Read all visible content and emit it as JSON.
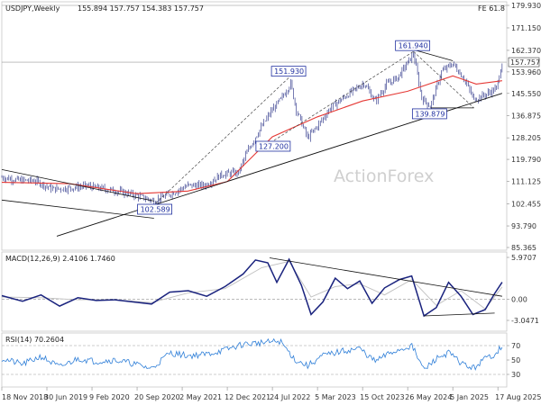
{
  "chart_data": {
    "type": "candlestick",
    "price_panel": {
      "title": "USDJPY,Weekly",
      "ohlc_readout": "155.894 157.757 154.383 157.757",
      "fib_label": "FE 61.8",
      "last_price": "157.757",
      "y_tick_labels": [
        "179.930",
        "171.150",
        "162.370",
        "153.960",
        "145.550",
        "136.875",
        "128.205",
        "119.790",
        "111.125",
        "102.455",
        "93.790",
        "85.365"
      ],
      "ylim": [
        85.365,
        179.93
      ],
      "swing_labels": [
        {
          "text": "102.589",
          "date": "2020-12-21",
          "value": 102.589
        },
        {
          "text": "127.200",
          "date": "2022-08-01",
          "value": 127.2
        },
        {
          "text": "151.930",
          "date": "2022-10-17",
          "value": 151.93
        },
        {
          "text": "161.940",
          "date": "2024-06-24",
          "value": 161.94
        },
        {
          "text": "139.879",
          "date": "2024-09-16",
          "value": 139.879
        }
      ],
      "close_series": {
        "dates": [
          "2018-11-18",
          "2019-02-10",
          "2019-05-05",
          "2019-07-28",
          "2019-10-20",
          "2020-01-12",
          "2020-04-05",
          "2020-06-28",
          "2020-09-20",
          "2020-12-13",
          "2021-03-07",
          "2021-05-30",
          "2021-08-22",
          "2021-11-14",
          "2022-02-06",
          "2022-03-13",
          "2022-05-01",
          "2022-07-17",
          "2022-09-11",
          "2022-10-23",
          "2022-11-20",
          "2023-01-15",
          "2023-03-12",
          "2023-05-07",
          "2023-07-02",
          "2023-08-27",
          "2023-10-22",
          "2023-12-17",
          "2024-02-11",
          "2024-04-07",
          "2024-06-24",
          "2024-08-04",
          "2024-09-16",
          "2024-11-10",
          "2025-01-05",
          "2025-03-02",
          "2025-04-20",
          "2025-06-15",
          "2025-08-10",
          "2025-09-07"
        ],
        "values": [
          112.8,
          111.6,
          111.4,
          108.2,
          108.6,
          109.4,
          108.3,
          107.2,
          105.6,
          103.6,
          106.4,
          109.6,
          109.6,
          113.9,
          114.7,
          121.4,
          128.6,
          138.4,
          144.0,
          149.5,
          139.2,
          128.2,
          133.5,
          139.8,
          143.2,
          146.5,
          149.6,
          142.5,
          149.1,
          151.8,
          161.0,
          143.8,
          140.4,
          154.0,
          157.2,
          151.4,
          143.2,
          145.0,
          147.5,
          157.7
        ]
      },
      "ma55": {
        "dates": [
          "2018-11-18",
          "2019-10-20",
          "2020-09-20",
          "2021-05-30",
          "2021-12-12",
          "2022-07-24",
          "2023-03-05",
          "2023-10-15",
          "2024-05-26",
          "2025-01-05",
          "2025-05-01",
          "2025-09-07"
        ],
        "values": [
          110.8,
          110.3,
          106.4,
          107.4,
          111.1,
          128.6,
          136.4,
          142.6,
          146.4,
          152.4,
          149.2,
          150.5
        ]
      },
      "ma55_label": "",
      "channel_upper": {
        "dates": [
          "2018-11-18",
          "2020-12-13"
        ],
        "values": [
          115.8,
          103.5
        ]
      },
      "channel_lower": {
        "dates": [
          "2018-11-18",
          "2020-12-13"
        ],
        "values": [
          103.9,
          96.8
        ]
      },
      "long_trendline": {
        "dates": [
          "2019-08-18",
          "2025-09-07"
        ],
        "values": [
          89.8,
          145.6
        ]
      },
      "upper_wedge": {
        "dates": [
          "2024-06-24",
          "2025-01-05"
        ],
        "values": [
          162.6,
          158.3
        ]
      },
      "lower_wedge": {
        "dates": [
          "2024-09-16",
          "2025-04-20"
        ],
        "values": [
          139.9,
          139.9
        ]
      },
      "projection_lines": [
        {
          "dates": [
            "2020-12-21",
            "2022-10-17"
          ],
          "values": [
            102.589,
            151.93
          ]
        },
        {
          "dates": [
            "2022-08-01",
            "2024-06-24"
          ],
          "values": [
            127.2,
            161.94
          ]
        },
        {
          "dates": [
            "2024-06-24",
            "2025-04-20"
          ],
          "values": [
            161.94,
            139.879
          ]
        }
      ]
    },
    "macd_panel": {
      "title": "MACD(12,26,9) 2.4106 1.7460",
      "y_tick_labels": [
        "5.9707",
        "0.00",
        "-3.0471"
      ],
      "ylim": [
        -3.0471,
        5.9707
      ],
      "macd": {
        "dates": [
          "2018-11-18",
          "2019-03-01",
          "2019-06-01",
          "2019-09-01",
          "2019-12-01",
          "2020-03-01",
          "2020-06-01",
          "2020-09-01",
          "2020-12-01",
          "2021-03-01",
          "2021-06-01",
          "2021-09-01",
          "2021-12-01",
          "2022-03-01",
          "2022-05-01",
          "2022-07-01",
          "2022-08-15",
          "2022-10-15",
          "2022-12-15",
          "2023-02-01",
          "2023-04-01",
          "2023-06-01",
          "2023-08-01",
          "2023-10-01",
          "2023-12-01",
          "2024-02-01",
          "2024-04-15",
          "2024-06-15",
          "2024-08-15",
          "2024-10-15",
          "2024-12-15",
          "2025-02-15",
          "2025-04-15",
          "2025-06-15",
          "2025-08-01",
          "2025-09-07"
        ],
        "values": [
          0.5,
          -0.3,
          0.6,
          -1.0,
          0.2,
          -0.2,
          -0.1,
          -0.4,
          -0.7,
          1.0,
          1.2,
          0.4,
          1.8,
          3.6,
          5.6,
          5.2,
          2.4,
          5.7,
          2.0,
          -2.2,
          -0.4,
          3.0,
          1.5,
          2.6,
          -0.6,
          1.6,
          2.8,
          3.3,
          -2.4,
          -1.2,
          2.4,
          0.4,
          -2.2,
          -1.5,
          0.8,
          2.41
        ]
      },
      "signal": {
        "dates": [
          "2018-11-18",
          "2019-06-01",
          "2019-12-01",
          "2020-06-01",
          "2020-12-01",
          "2021-06-01",
          "2021-12-01",
          "2022-06-01",
          "2022-10-15",
          "2023-02-01",
          "2023-06-01",
          "2023-10-01",
          "2024-02-01",
          "2024-06-15",
          "2024-10-15",
          "2025-02-15",
          "2025-06-15",
          "2025-09-07"
        ],
        "values": [
          0.3,
          0.2,
          -0.1,
          -0.1,
          -0.5,
          0.9,
          1.5,
          4.5,
          5.4,
          0.3,
          1.8,
          2.2,
          0.6,
          2.8,
          -0.9,
          1.2,
          -1.4,
          1.75
        ]
      },
      "trend_upper": {
        "dates": [
          "2022-07-10",
          "2025-09-07"
        ],
        "values": [
          5.9,
          0.4
        ]
      },
      "trend_lower": {
        "dates": [
          "2024-08-15",
          "2025-08-01"
        ],
        "values": [
          -2.4,
          -2.0
        ]
      }
    },
    "rsi_panel": {
      "title": "RSI(14) 70.2604",
      "y_tick_labels": [
        "70",
        "50",
        "30"
      ],
      "ylim": [
        15,
        85
      ],
      "levels": [
        70,
        30
      ],
      "rsi": {
        "dates": [
          "2018-11-18",
          "2019-03-01",
          "2019-06-01",
          "2019-09-01",
          "2019-12-01",
          "2020-03-01",
          "2020-06-01",
          "2020-09-01",
          "2020-12-01",
          "2021-03-01",
          "2021-06-01",
          "2021-09-01",
          "2021-12-01",
          "2022-03-01",
          "2022-06-01",
          "2022-09-01",
          "2022-11-15",
          "2023-01-15",
          "2023-04-01",
          "2023-07-01",
          "2023-10-01",
          "2023-12-15",
          "2024-03-01",
          "2024-06-15",
          "2024-08-15",
          "2024-10-15",
          "2024-12-15",
          "2025-02-15",
          "2025-04-15",
          "2025-06-15",
          "2025-08-01",
          "2025-09-07"
        ],
        "values": [
          52,
          44,
          55,
          40,
          52,
          48,
          50,
          45,
          38,
          60,
          56,
          58,
          64,
          72,
          74,
          76,
          50,
          42,
          56,
          62,
          66,
          48,
          60,
          70,
          36,
          52,
          60,
          46,
          38,
          52,
          58,
          70.26
        ]
      }
    },
    "x_axis": {
      "tick_labels": [
        "18 Nov 2018",
        "30 Jun 2019",
        "9 Feb 2020",
        "20 Sep 2020",
        "2 May 2021",
        "12 Dec 2021",
        "24 Jul 2022",
        "5 Mar 2023",
        "15 Oct 2023",
        "26 May 2024",
        "5 Jan 2025",
        "17 Aug 2025"
      ],
      "tick_dates": [
        "2018-11-18",
        "2019-06-30",
        "2020-02-09",
        "2020-09-20",
        "2021-05-02",
        "2021-12-12",
        "2022-07-24",
        "2023-03-05",
        "2023-10-15",
        "2024-05-26",
        "2025-01-05",
        "2025-08-17"
      ],
      "range": [
        "2018-11-18",
        "2025-09-30"
      ]
    },
    "watermark": "ActionForex",
    "colors": {
      "candles": "#1a237e",
      "ma": "#e53935",
      "macd": "#1a237e",
      "signal": "#c0c0c0",
      "rsi": "#2f7fd8",
      "trendlines": "#111111",
      "last_price_line": "#9a9a9a"
    }
  }
}
